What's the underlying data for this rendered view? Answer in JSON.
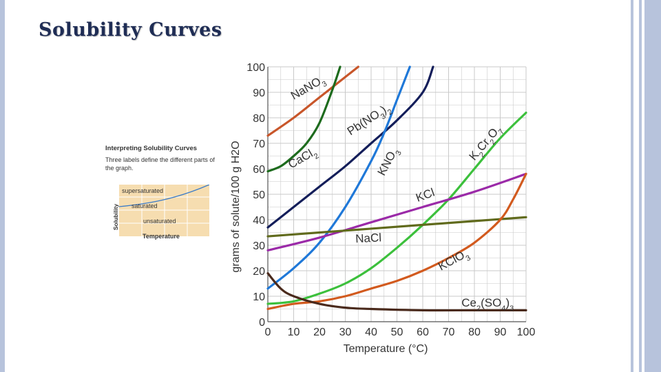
{
  "slide": {
    "title": "Solubility Curves"
  },
  "inset": {
    "title": "Interpreting Solubility Curves",
    "description": "Three labels define the different parts of the graph.",
    "y_label": "Solubility",
    "x_label": "Temperature",
    "zones": {
      "supersaturated": "supersaturated",
      "saturated": "saturated",
      "unsaturated": "unsaturated"
    }
  },
  "chart_data": {
    "type": "line",
    "xlabel": "Temperature (°C)",
    "ylabel": "grams of solute/100 g H2O",
    "xlim": [
      0,
      100
    ],
    "ylim": [
      0,
      100
    ],
    "xticks": [
      0,
      10,
      20,
      30,
      40,
      50,
      60,
      70,
      80,
      90,
      100
    ],
    "yticks": [
      0,
      10,
      20,
      30,
      40,
      50,
      60,
      70,
      80,
      90,
      100
    ],
    "grid": true,
    "series": [
      {
        "name": "NaNO3",
        "label_html": "NaNO<tspan baseline-shift='sub' font-size='11'>3</tspan>",
        "color": "#c8562a",
        "x": [
          0,
          10,
          20,
          30,
          35
        ],
        "y": [
          73,
          80,
          88,
          96,
          100
        ]
      },
      {
        "name": "CaCl2",
        "label_html": "CaCl<tspan baseline-shift='sub' font-size='11'>2</tspan>",
        "color": "#1d6b1d",
        "x": [
          0,
          5,
          10,
          15,
          20,
          25,
          28
        ],
        "y": [
          59,
          61,
          65,
          70,
          78,
          91,
          100
        ]
      },
      {
        "name": "Pb(NO3)2",
        "label_html": "Pb(NO<tspan baseline-shift='sub' font-size='11'>3</tspan>)<tspan baseline-shift='sub' font-size='11'>2</tspan>",
        "color": "#141e5a",
        "x": [
          0,
          10,
          20,
          30,
          40,
          50,
          60,
          64
        ],
        "y": [
          37,
          45,
          53,
          61,
          70,
          79,
          90,
          100
        ]
      },
      {
        "name": "KNO3",
        "label_html": "KNO<tspan baseline-shift='sub' font-size='11'>3</tspan>",
        "color": "#1f78d8",
        "x": [
          0,
          10,
          20,
          30,
          40,
          45,
          50,
          55
        ],
        "y": [
          13,
          21,
          31,
          45,
          63,
          74,
          87,
          100
        ]
      },
      {
        "name": "K2Cr2O7",
        "label_html": "K<tspan baseline-shift='sub' font-size='11'>2</tspan>Cr<tspan baseline-shift='sub' font-size='11'>2</tspan>O<tspan baseline-shift='sub' font-size='11'>7</tspan>",
        "color": "#3cc03c",
        "x": [
          0,
          10,
          20,
          30,
          40,
          50,
          60,
          70,
          80,
          90,
          100
        ],
        "y": [
          7,
          8,
          11,
          15,
          21,
          29,
          38,
          48,
          60,
          72,
          82
        ]
      },
      {
        "name": "KCl",
        "label_html": "KCl",
        "color": "#9b2aa8",
        "x": [
          0,
          20,
          40,
          60,
          80,
          100
        ],
        "y": [
          28,
          33,
          39,
          45,
          51,
          58
        ]
      },
      {
        "name": "NaCl",
        "label_html": "NaCl",
        "color": "#606a1c",
        "x": [
          0,
          20,
          40,
          60,
          80,
          100
        ],
        "y": [
          33.5,
          35,
          36.5,
          38,
          39.5,
          41
        ]
      },
      {
        "name": "KClO3",
        "label_html": "KClO<tspan baseline-shift='sub' font-size='11'>3</tspan>",
        "color": "#d25a1e",
        "x": [
          0,
          10,
          20,
          30,
          40,
          50,
          60,
          70,
          80,
          90,
          95,
          100
        ],
        "y": [
          5,
          7,
          8,
          10,
          13,
          16,
          20,
          25,
          31,
          40,
          48,
          58
        ]
      },
      {
        "name": "Ce2(SO4)3",
        "label_html": "Ce<tspan baseline-shift='sub' font-size='11'>2</tspan>(SO<tspan baseline-shift='sub' font-size='11'>4</tspan>)<tspan baseline-shift='sub' font-size='11'>3</tspan>",
        "color": "#4a2a1c",
        "x": [
          0,
          5,
          10,
          20,
          30,
          40,
          60,
          80,
          100
        ],
        "y": [
          19,
          13,
          10,
          7,
          5.5,
          5,
          4.5,
          4.5,
          4.5
        ]
      }
    ]
  },
  "theme": {
    "frame": "#b7c3dc",
    "grid": "#c9c9c9",
    "title": "#1f2d55",
    "inset_fill": "#f6ddb0",
    "inset_curve": "#3a7bc8"
  }
}
